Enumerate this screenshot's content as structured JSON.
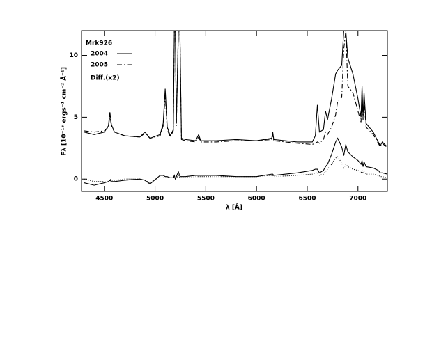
{
  "chart_data": {
    "type": "line",
    "legend_title": "Mrk926",
    "x_label": "λ [Å]",
    "y_label": "Fλ [10⁻¹⁵ ergs⁻¹ cm⁻² Å⁻¹]",
    "xlim": [
      4275,
      7290
    ],
    "ylim": [
      -1,
      12
    ],
    "xticks": [
      4500,
      5000,
      5500,
      6000,
      6500,
      7000
    ],
    "yticks": [
      0,
      5,
      10
    ],
    "legend": "top-left",
    "x": [
      4300,
      4400,
      4500,
      4540,
      4555,
      4570,
      4600,
      4700,
      4850,
      4900,
      4950,
      5050,
      5080,
      5100,
      5120,
      5150,
      5180,
      5190,
      5200,
      5210,
      5230,
      5245,
      5260,
      5300,
      5400,
      5430,
      5450,
      5600,
      5800,
      6000,
      6150,
      6160,
      6170,
      6400,
      6550,
      6580,
      6600,
      6620,
      6660,
      6680,
      6700,
      6740,
      6780,
      6800,
      6840,
      6860,
      6880,
      6900,
      6950,
      7000,
      7030,
      7040,
      7050,
      7060,
      7080,
      7150,
      7200,
      7220,
      7240,
      7290
    ],
    "series": [
      {
        "name": "2004",
        "color": "#000000",
        "dash": "solid",
        "values": [
          3.8,
          3.6,
          3.8,
          4.3,
          5.4,
          4.4,
          3.8,
          3.5,
          3.4,
          3.8,
          3.3,
          3.6,
          4.5,
          7.3,
          4.2,
          3.5,
          4.0,
          12,
          12,
          4.5,
          12,
          12,
          3.3,
          3.2,
          3.1,
          3.6,
          3.1,
          3.1,
          3.2,
          3.1,
          3.3,
          3.8,
          3.2,
          3.0,
          3.0,
          3.5,
          6.0,
          3.8,
          4.0,
          5.5,
          4.8,
          6.5,
          8.5,
          8.8,
          9.2,
          12,
          12,
          9.8,
          8.5,
          6.5,
          5.0,
          7.5,
          5.0,
          7.0,
          4.5,
          3.8,
          3.0,
          2.7,
          3.0,
          2.6
        ]
      },
      {
        "name": "2005",
        "color": "#000000",
        "dash": "dashdot",
        "values": [
          3.9,
          3.8,
          3.9,
          4.2,
          5.1,
          4.3,
          3.8,
          3.5,
          3.4,
          3.7,
          3.3,
          3.5,
          4.3,
          6.8,
          4.0,
          3.4,
          3.9,
          12,
          12,
          4.3,
          12,
          12,
          3.2,
          3.1,
          3.0,
          3.4,
          3.0,
          3.0,
          3.1,
          3.1,
          3.2,
          3.6,
          3.1,
          2.9,
          2.8,
          2.9,
          3.0,
          2.9,
          3.2,
          3.8,
          3.6,
          4.2,
          5.2,
          6.3,
          6.6,
          10.5,
          12,
          7.5,
          7.0,
          5.5,
          4.6,
          7.2,
          4.8,
          6.5,
          4.2,
          3.6,
          2.9,
          2.6,
          2.9,
          2.5
        ]
      },
      {
        "name": "Diff.(x2)",
        "color": "#000000",
        "dash": "solid",
        "values": [
          -0.3,
          -0.5,
          -0.3,
          -0.2,
          -0.1,
          -0.2,
          -0.2,
          -0.1,
          0.0,
          -0.1,
          -0.4,
          0.3,
          0.3,
          0.2,
          0.2,
          0.1,
          0.1,
          0.3,
          0.0,
          0.2,
          0.6,
          0.2,
          0.2,
          0.2,
          0.3,
          0.3,
          0.3,
          0.3,
          0.2,
          0.2,
          0.4,
          0.4,
          0.3,
          0.5,
          0.7,
          0.8,
          0.8,
          0.5,
          0.7,
          1.0,
          1.2,
          2.0,
          3.0,
          3.3,
          2.6,
          1.9,
          2.8,
          2.2,
          1.8,
          1.5,
          1.2,
          1.5,
          1.0,
          1.4,
          1.0,
          0.9,
          0.7,
          0.5,
          0.5,
          0.4
        ]
      },
      {
        "color": "#000000",
        "dash": "dotted",
        "values": [
          0.0,
          -0.2,
          -0.2,
          -0.1,
          0.0,
          -0.1,
          -0.1,
          0.0,
          0.0,
          -0.1,
          -0.3,
          0.2,
          0.2,
          0.1,
          0.1,
          0.1,
          0.1,
          0.2,
          0.0,
          0.1,
          0.3,
          0.1,
          0.1,
          0.1,
          0.2,
          0.2,
          0.2,
          0.2,
          0.2,
          0.2,
          0.3,
          0.3,
          0.2,
          0.3,
          0.4,
          0.5,
          0.5,
          0.3,
          0.4,
          0.6,
          0.8,
          1.2,
          1.7,
          1.8,
          1.3,
          0.9,
          1.2,
          1.0,
          0.8,
          0.7,
          0.5,
          0.7,
          0.5,
          0.6,
          0.4,
          0.4,
          0.3,
          0.2,
          0.2,
          0.1
        ]
      }
    ]
  }
}
